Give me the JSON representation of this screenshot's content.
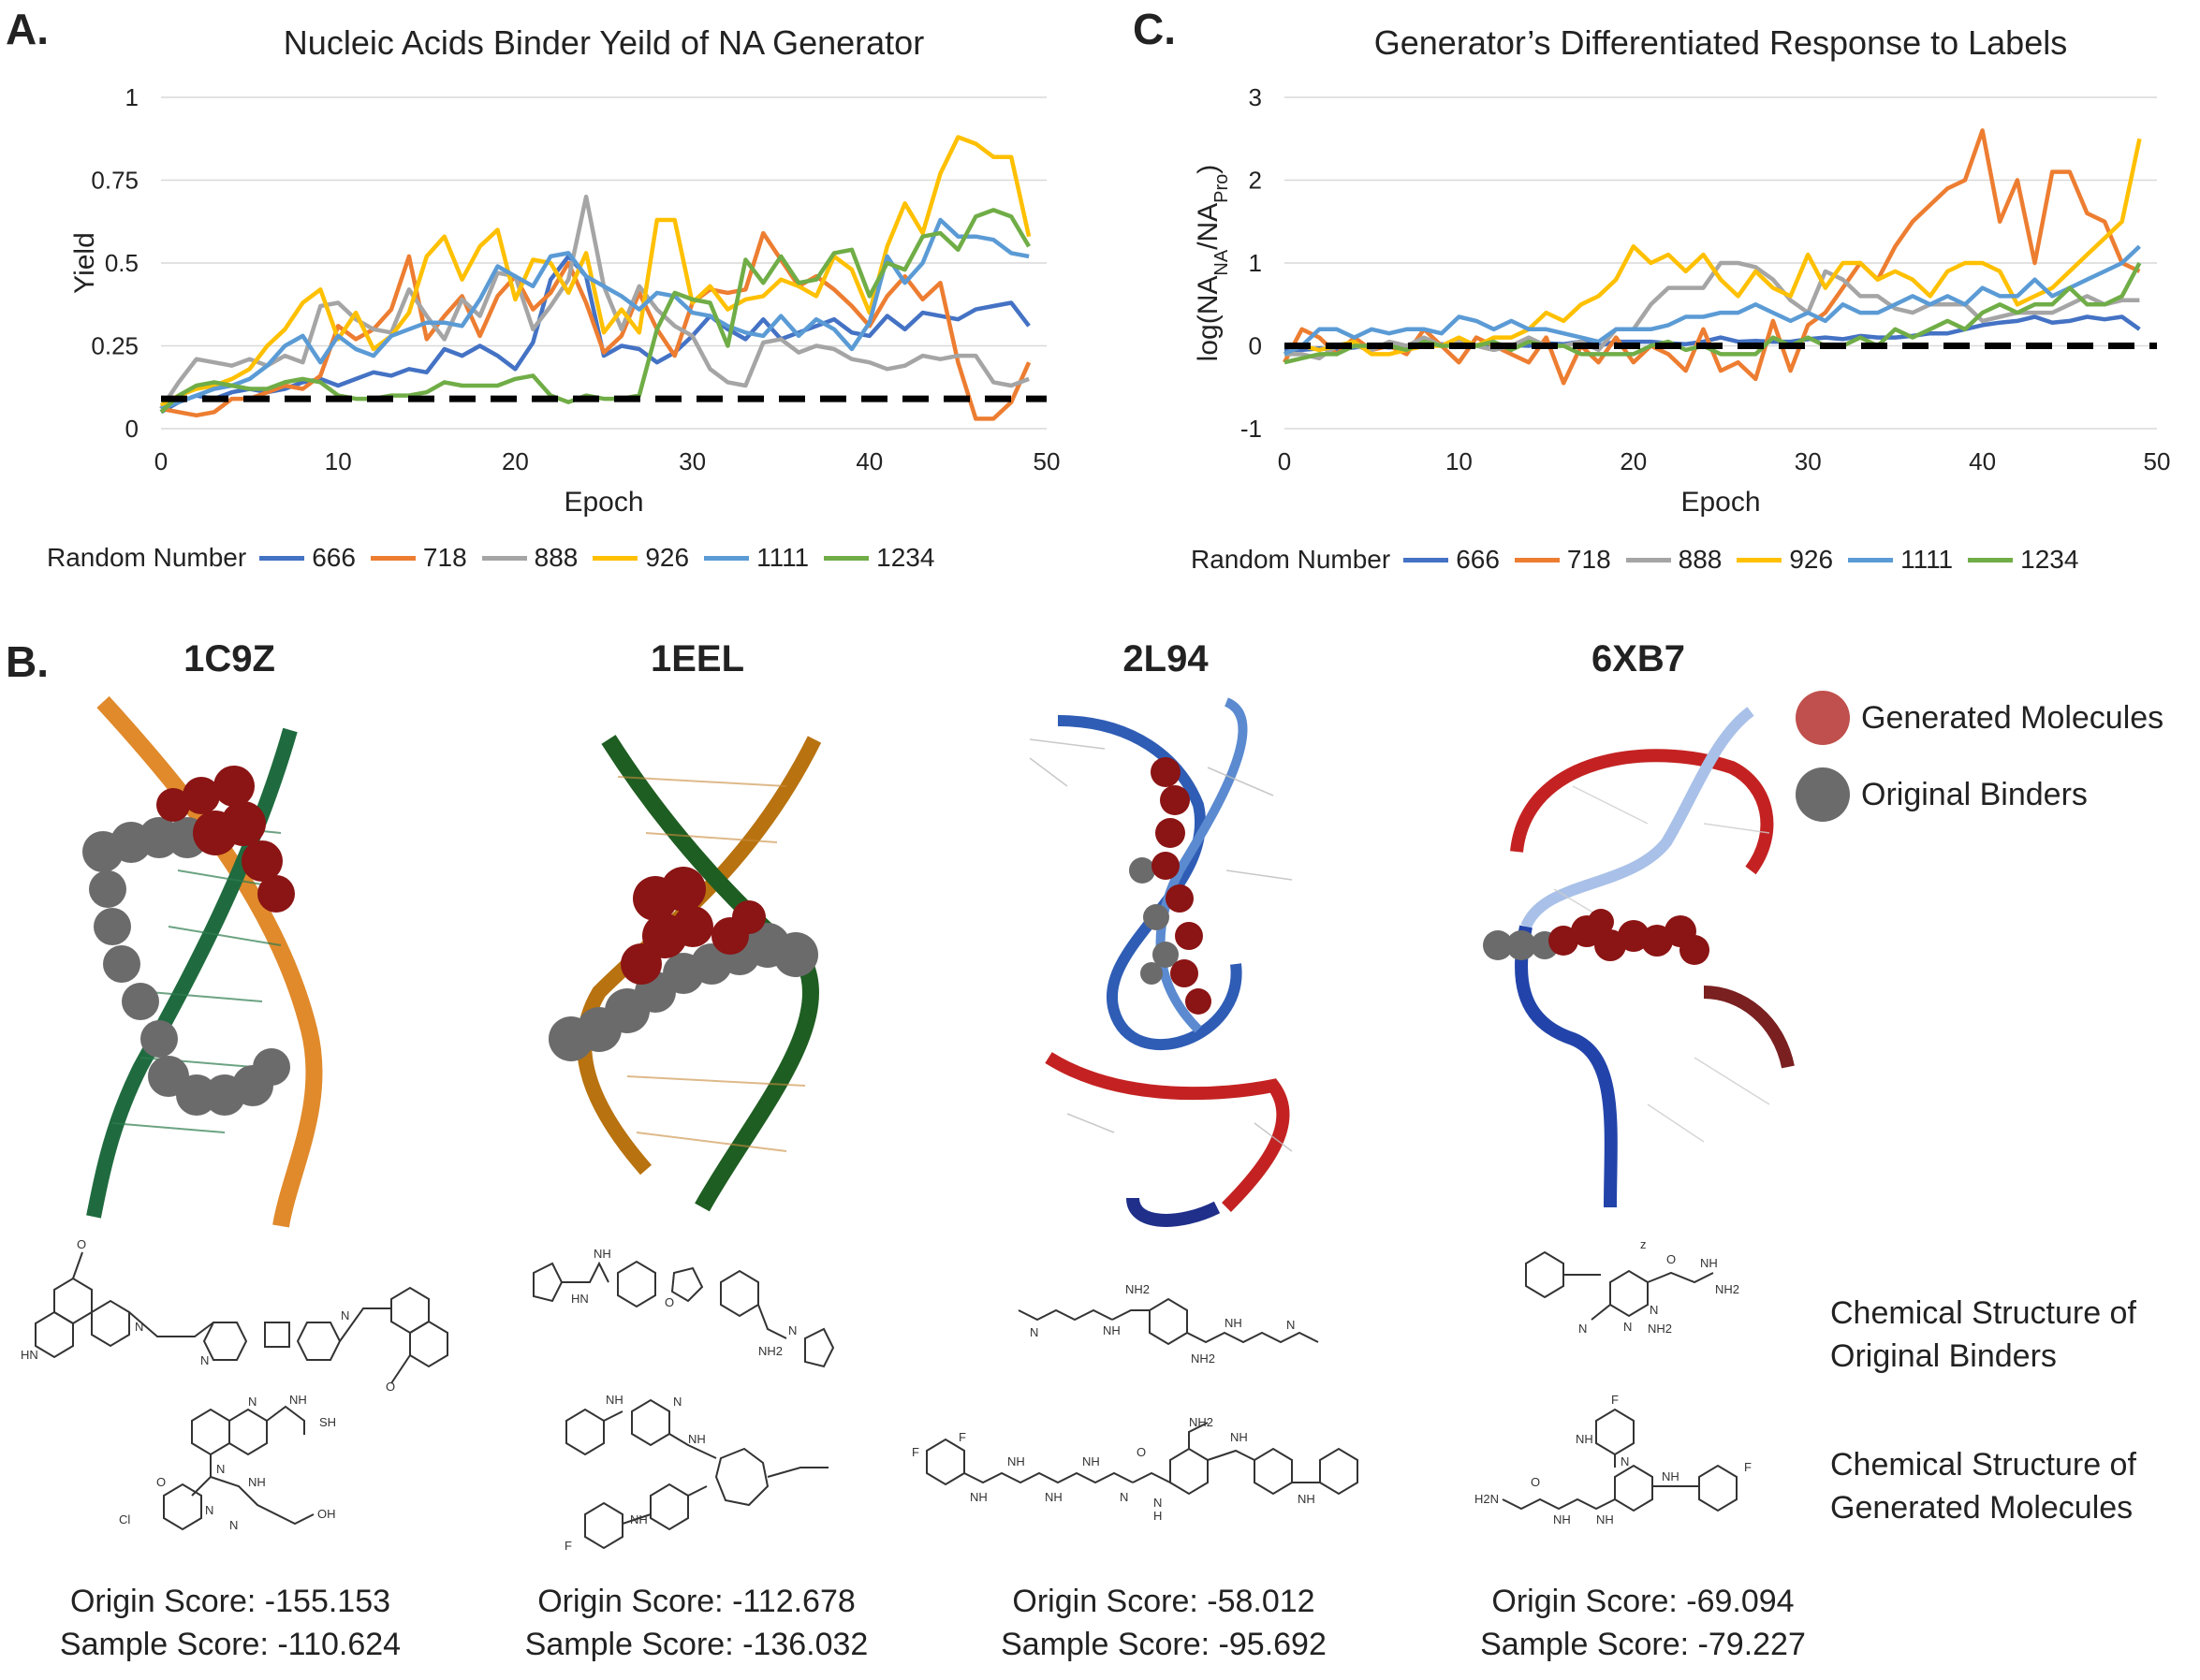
{
  "panels": {
    "a": "A.",
    "b": "B.",
    "c": "C."
  },
  "colors": {
    "666": "#4472C4",
    "718": "#ED7D31",
    "888": "#A5A5A5",
    "926": "#FFC000",
    "1111": "#5B9BD5",
    "1234": "#70AD47",
    "generated": "#C0504D",
    "original": "#6B6B6B"
  },
  "chart_data": [
    {
      "type": "line",
      "title": "Nucleic Acids Binder Yeild of NA Generator",
      "xlabel": "Epoch",
      "ylabel": "Yield",
      "xlim": [
        0,
        50
      ],
      "ylim": [
        0,
        1
      ],
      "xticks": [
        "0",
        "10",
        "20",
        "30",
        "40",
        "50"
      ],
      "yticks": [
        "0",
        "0.25",
        "0.5",
        "0.75",
        "1"
      ],
      "legend_title": "Random Number",
      "legend_position": "bottom",
      "baseline": 0.09,
      "x": [
        0,
        1,
        2,
        3,
        4,
        5,
        6,
        7,
        8,
        9,
        10,
        11,
        12,
        13,
        14,
        15,
        16,
        17,
        18,
        19,
        20,
        21,
        22,
        23,
        24,
        25,
        26,
        27,
        28,
        29,
        30,
        31,
        32,
        33,
        34,
        35,
        36,
        37,
        38,
        39,
        40,
        41,
        42,
        43,
        44,
        45,
        46,
        47,
        48,
        49
      ],
      "series": [
        {
          "name": "666",
          "values": [
            0.05,
            0.08,
            0.1,
            0.09,
            0.11,
            0.12,
            0.11,
            0.12,
            0.14,
            0.15,
            0.13,
            0.15,
            0.17,
            0.16,
            0.18,
            0.17,
            0.24,
            0.22,
            0.25,
            0.22,
            0.18,
            0.26,
            0.45,
            0.52,
            0.46,
            0.22,
            0.25,
            0.24,
            0.2,
            0.23,
            0.28,
            0.34,
            0.3,
            0.27,
            0.33,
            0.27,
            0.29,
            0.31,
            0.33,
            0.29,
            0.28,
            0.34,
            0.3,
            0.35,
            0.34,
            0.33,
            0.36,
            0.37,
            0.38,
            0.31
          ]
        },
        {
          "name": "718",
          "values": [
            0.06,
            0.05,
            0.04,
            0.05,
            0.09,
            0.09,
            0.11,
            0.13,
            0.12,
            0.16,
            0.31,
            0.27,
            0.3,
            0.36,
            0.52,
            0.27,
            0.34,
            0.4,
            0.28,
            0.4,
            0.46,
            0.36,
            0.41,
            0.5,
            0.38,
            0.23,
            0.28,
            0.41,
            0.3,
            0.22,
            0.38,
            0.42,
            0.41,
            0.42,
            0.59,
            0.51,
            0.43,
            0.46,
            0.42,
            0.37,
            0.31,
            0.4,
            0.46,
            0.39,
            0.44,
            0.2,
            0.03,
            0.03,
            0.08,
            0.2
          ]
        },
        {
          "name": "888",
          "values": [
            0.06,
            0.14,
            0.21,
            0.2,
            0.19,
            0.21,
            0.19,
            0.22,
            0.2,
            0.37,
            0.38,
            0.33,
            0.3,
            0.29,
            0.42,
            0.34,
            0.27,
            0.39,
            0.34,
            0.47,
            0.46,
            0.3,
            0.37,
            0.45,
            0.7,
            0.43,
            0.3,
            0.43,
            0.36,
            0.31,
            0.28,
            0.18,
            0.14,
            0.13,
            0.26,
            0.27,
            0.23,
            0.25,
            0.24,
            0.21,
            0.2,
            0.18,
            0.19,
            0.22,
            0.21,
            0.22,
            0.22,
            0.14,
            0.13,
            0.15
          ]
        },
        {
          "name": "926",
          "values": [
            0.07,
            0.1,
            0.12,
            0.13,
            0.15,
            0.18,
            0.25,
            0.3,
            0.38,
            0.42,
            0.27,
            0.35,
            0.24,
            0.28,
            0.35,
            0.52,
            0.58,
            0.45,
            0.55,
            0.6,
            0.39,
            0.51,
            0.5,
            0.41,
            0.53,
            0.29,
            0.36,
            0.29,
            0.63,
            0.63,
            0.38,
            0.43,
            0.36,
            0.39,
            0.4,
            0.45,
            0.43,
            0.4,
            0.52,
            0.48,
            0.35,
            0.55,
            0.68,
            0.59,
            0.77,
            0.88,
            0.86,
            0.82,
            0.82,
            0.58
          ]
        },
        {
          "name": "1111",
          "values": [
            0.06,
            0.08,
            0.1,
            0.12,
            0.13,
            0.15,
            0.19,
            0.25,
            0.28,
            0.2,
            0.28,
            0.24,
            0.22,
            0.28,
            0.3,
            0.32,
            0.32,
            0.31,
            0.39,
            0.49,
            0.46,
            0.43,
            0.52,
            0.53,
            0.46,
            0.43,
            0.4,
            0.36,
            0.41,
            0.4,
            0.35,
            0.34,
            0.31,
            0.29,
            0.28,
            0.34,
            0.28,
            0.33,
            0.3,
            0.24,
            0.32,
            0.52,
            0.44,
            0.5,
            0.63,
            0.58,
            0.58,
            0.57,
            0.53,
            0.52
          ]
        },
        {
          "name": "1234",
          "values": [
            0.05,
            0.1,
            0.13,
            0.14,
            0.13,
            0.12,
            0.12,
            0.14,
            0.15,
            0.14,
            0.1,
            0.09,
            0.09,
            0.1,
            0.1,
            0.11,
            0.14,
            0.13,
            0.13,
            0.13,
            0.15,
            0.16,
            0.1,
            0.08,
            0.1,
            0.09,
            0.09,
            0.1,
            0.3,
            0.41,
            0.39,
            0.38,
            0.25,
            0.51,
            0.44,
            0.52,
            0.44,
            0.45,
            0.53,
            0.54,
            0.4,
            0.5,
            0.48,
            0.58,
            0.59,
            0.54,
            0.64,
            0.66,
            0.64,
            0.55
          ]
        }
      ]
    },
    {
      "type": "line",
      "title": "Generator’s Differentiated Response to Labels",
      "xlabel": "Epoch",
      "ylabel": "log(NANA/NAPro)",
      "xlim": [
        0,
        50
      ],
      "ylim": [
        -1,
        3
      ],
      "xticks": [
        "0",
        "10",
        "20",
        "30",
        "40",
        "50"
      ],
      "yticks": [
        "-1",
        "0",
        "1",
        "2",
        "3"
      ],
      "legend_title": "Random Number",
      "legend_position": "bottom",
      "baseline": 0,
      "x": [
        0,
        1,
        2,
        3,
        4,
        5,
        6,
        7,
        8,
        9,
        10,
        11,
        12,
        13,
        14,
        15,
        16,
        17,
        18,
        19,
        20,
        21,
        22,
        23,
        24,
        25,
        26,
        27,
        28,
        29,
        30,
        31,
        32,
        33,
        34,
        35,
        36,
        37,
        38,
        39,
        40,
        41,
        42,
        43,
        44,
        45,
        46,
        47,
        48,
        49
      ],
      "series": [
        {
          "name": "666",
          "values": [
            -0.05,
            -0.05,
            -0.03,
            -0.05,
            -0.02,
            0.0,
            -0.02,
            0.0,
            0.0,
            0.02,
            0.0,
            0.01,
            0.02,
            0.01,
            0.0,
            0.03,
            0.02,
            0.05,
            0.0,
            0.05,
            0.05,
            0.05,
            0.03,
            0.02,
            0.05,
            0.1,
            0.05,
            0.06,
            0.05,
            0.05,
            0.08,
            0.1,
            0.08,
            0.12,
            0.1,
            0.1,
            0.12,
            0.15,
            0.15,
            0.2,
            0.25,
            0.28,
            0.3,
            0.35,
            0.28,
            0.3,
            0.35,
            0.32,
            0.35,
            0.2
          ]
        },
        {
          "name": "718",
          "values": [
            -0.2,
            0.2,
            0.1,
            -0.1,
            0.1,
            -0.05,
            0.0,
            -0.1,
            0.2,
            0.0,
            -0.2,
            0.1,
            0.0,
            -0.1,
            -0.2,
            0.1,
            -0.45,
            0.0,
            -0.2,
            0.1,
            -0.2,
            0.0,
            -0.1,
            -0.3,
            0.2,
            -0.3,
            -0.2,
            -0.4,
            0.3,
            -0.3,
            0.25,
            0.4,
            0.7,
            1.0,
            0.8,
            1.2,
            1.5,
            1.7,
            1.9,
            2.0,
            2.6,
            1.5,
            2.0,
            1.0,
            2.1,
            2.1,
            1.6,
            1.5,
            1.0,
            0.9
          ]
        },
        {
          "name": "888",
          "values": [
            -0.1,
            -0.1,
            -0.15,
            0.0,
            0.0,
            -0.05,
            0.05,
            0.0,
            0.1,
            0.0,
            0.05,
            0.0,
            -0.05,
            0.0,
            0.1,
            0.0,
            0.0,
            0.05,
            -0.05,
            0.2,
            0.2,
            0.5,
            0.7,
            0.7,
            0.7,
            1.0,
            1.0,
            0.95,
            0.8,
            0.55,
            0.4,
            0.9,
            0.8,
            0.6,
            0.6,
            0.45,
            0.4,
            0.5,
            0.5,
            0.5,
            0.3,
            0.35,
            0.4,
            0.4,
            0.4,
            0.5,
            0.6,
            0.5,
            0.55,
            0.55
          ]
        },
        {
          "name": "926",
          "values": [
            -0.1,
            0.0,
            -0.05,
            0.0,
            0.05,
            -0.1,
            -0.1,
            -0.05,
            0.0,
            0.0,
            0.1,
            0.0,
            0.1,
            0.1,
            0.2,
            0.4,
            0.3,
            0.5,
            0.6,
            0.8,
            1.2,
            1.0,
            1.1,
            0.9,
            1.1,
            0.8,
            0.6,
            0.9,
            0.7,
            0.6,
            1.1,
            0.7,
            1.0,
            1.0,
            0.8,
            0.9,
            0.8,
            0.6,
            0.9,
            1.0,
            1.0,
            0.9,
            0.5,
            0.6,
            0.7,
            0.9,
            1.1,
            1.3,
            1.5,
            2.5
          ]
        },
        {
          "name": "1111",
          "values": [
            -0.1,
            0.0,
            0.2,
            0.2,
            0.1,
            0.2,
            0.15,
            0.2,
            0.2,
            0.15,
            0.35,
            0.3,
            0.2,
            0.3,
            0.2,
            0.2,
            0.15,
            0.1,
            0.05,
            0.2,
            0.2,
            0.2,
            0.25,
            0.35,
            0.35,
            0.4,
            0.4,
            0.5,
            0.4,
            0.3,
            0.4,
            0.3,
            0.5,
            0.4,
            0.4,
            0.5,
            0.6,
            0.5,
            0.6,
            0.5,
            0.7,
            0.6,
            0.6,
            0.8,
            0.6,
            0.7,
            0.8,
            0.9,
            1.0,
            1.2
          ]
        },
        {
          "name": "1234",
          "values": [
            -0.2,
            -0.15,
            -0.1,
            -0.1,
            0.0,
            0.0,
            0.0,
            -0.05,
            0.05,
            0.0,
            0.0,
            0.0,
            0.05,
            -0.05,
            0.05,
            0.0,
            0.0,
            -0.1,
            -0.1,
            -0.1,
            -0.1,
            0.0,
            0.05,
            -0.05,
            0.0,
            -0.1,
            -0.1,
            -0.1,
            0.1,
            0.0,
            0.1,
            0.0,
            0.0,
            0.1,
            0.0,
            0.2,
            0.1,
            0.2,
            0.3,
            0.2,
            0.4,
            0.5,
            0.4,
            0.5,
            0.5,
            0.7,
            0.5,
            0.5,
            0.6,
            1.0
          ]
        }
      ]
    }
  ],
  "structures": [
    {
      "pdb": "1C9Z",
      "origin": "Origin Score: -155.153",
      "sample": "Sample Score: -110.624"
    },
    {
      "pdb": "1EEL",
      "origin": "Origin Score: -112.678",
      "sample": "Sample Score: -136.032"
    },
    {
      "pdb": "2L94",
      "origin": "Origin Score: -58.012",
      "sample": "Sample Score: -95.692"
    },
    {
      "pdb": "6XB7",
      "origin": "Origin Score: -69.094",
      "sample": "Sample Score: -79.227"
    }
  ],
  "key": {
    "generated": "Generated Molecules",
    "original": "Original Binders"
  },
  "side_labels": {
    "original_line1": "Chemical Structure of",
    "original_line2": "Original Binders",
    "generated_line1": "Chemical Structure of",
    "generated_line2": "Generated Molecules"
  },
  "mol_atoms": {
    "s1o": [
      "HN",
      "N",
      "N",
      "N",
      "O",
      "O"
    ],
    "s1g": [
      "N",
      "NH",
      "SH",
      "O",
      "Cl",
      "N",
      "NH",
      "N",
      "N",
      "OH"
    ],
    "s2o": [
      "NH",
      "HN",
      "O",
      "N",
      "NH2"
    ],
    "s2g": [
      "NH",
      "N",
      "NH",
      "F",
      "NH"
    ],
    "s3o": [
      "NH2",
      "N",
      "NH",
      "NH2",
      "N",
      "NH"
    ],
    "s3g": [
      "F",
      "F",
      "NH2",
      "N",
      "H",
      "O",
      "N",
      "NH",
      "NH",
      "NH",
      "NH",
      "NH",
      "NH"
    ],
    "s4o": [
      "z",
      "O",
      "NH",
      "NH2",
      "N",
      "N",
      "NH2",
      "N"
    ],
    "s4g": [
      "F",
      "NH",
      "N",
      "H2N",
      "O",
      "NH",
      "NH",
      "NH",
      "F"
    ]
  }
}
